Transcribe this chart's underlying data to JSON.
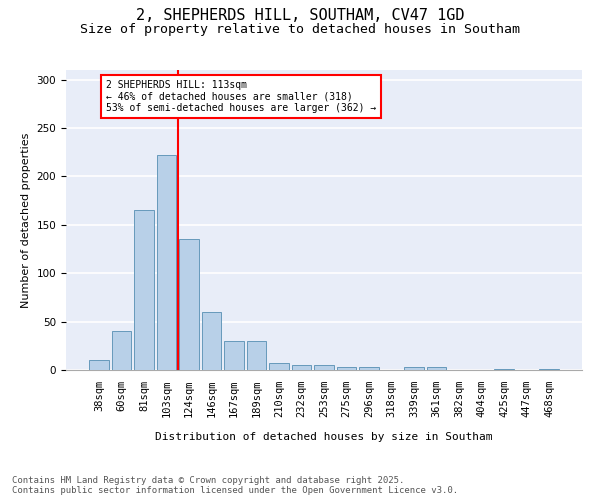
{
  "title1": "2, SHEPHERDS HILL, SOUTHAM, CV47 1GD",
  "title2": "Size of property relative to detached houses in Southam",
  "xlabel": "Distribution of detached houses by size in Southam",
  "ylabel": "Number of detached properties",
  "categories": [
    "38sqm",
    "60sqm",
    "81sqm",
    "103sqm",
    "124sqm",
    "146sqm",
    "167sqm",
    "189sqm",
    "210sqm",
    "232sqm",
    "253sqm",
    "275sqm",
    "296sqm",
    "318sqm",
    "339sqm",
    "361sqm",
    "382sqm",
    "404sqm",
    "425sqm",
    "447sqm",
    "468sqm"
  ],
  "values": [
    10,
    40,
    165,
    222,
    135,
    60,
    30,
    30,
    7,
    5,
    5,
    3,
    3,
    0,
    3,
    3,
    0,
    0,
    1,
    0,
    1
  ],
  "bar_color": "#b8d0e8",
  "bar_edge_color": "#6699bb",
  "vline_color": "red",
  "annotation_text": "2 SHEPHERDS HILL: 113sqm\n← 46% of detached houses are smaller (318)\n53% of semi-detached houses are larger (362) →",
  "annotation_box_color": "white",
  "annotation_box_edge": "red",
  "ylim": [
    0,
    310
  ],
  "yticks": [
    0,
    50,
    100,
    150,
    200,
    250,
    300
  ],
  "background_color": "#e8edf8",
  "footer": "Contains HM Land Registry data © Crown copyright and database right 2025.\nContains public sector information licensed under the Open Government Licence v3.0.",
  "title_fontsize": 11,
  "subtitle_fontsize": 9.5,
  "axis_label_fontsize": 8,
  "tick_fontsize": 7.5,
  "footer_fontsize": 6.5
}
